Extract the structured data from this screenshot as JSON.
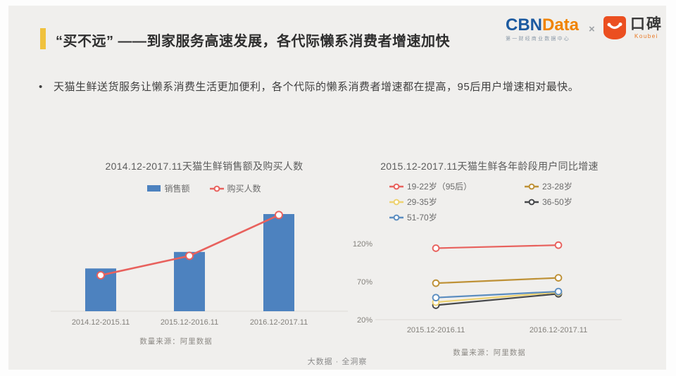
{
  "header": {
    "title": "“买不远” ——到家服务高速发展，各代际懒系消费者增速加快",
    "cbn_logo": {
      "cbn": "CBN",
      "data_word": "Data",
      "subtitle": "第一财经商业数据中心"
    },
    "separator": "×",
    "koubei_logo": {
      "cn": "口碑",
      "en": "Koubei",
      "brand_color": "#EB4F20"
    }
  },
  "bullet": {
    "marker": "•",
    "text": "天猫生鲜送货服务让懒系消费生活更加便利，各个代际的懒系消费者增速都在提高，95后用户增速相对最快。"
  },
  "chart_data": [
    {
      "type": "bar",
      "title": "2014.12-2017.11天猫生鲜销售额及购买人数",
      "categories": [
        "2014.12-2015.11",
        "2015.12-2016.11",
        "2016.12-2017.11"
      ],
      "series": [
        {
          "name": "销售额",
          "type": "bar",
          "color": "#4D82BF",
          "values": [
            44,
            61,
            100
          ]
        },
        {
          "name": "购买人数",
          "type": "line",
          "color": "#E8615D",
          "values": [
            37,
            57,
            99
          ]
        }
      ],
      "value_note": "无数值轴标注，取值为相对高度(最大=100)",
      "legend_position": "top",
      "grid": false,
      "source": "数量来源：阿里数据"
    },
    {
      "type": "line",
      "title": "2015.12-2017.11天猫生鲜各年龄段用户同比增速",
      "categories": [
        "2015.12-2016.11",
        "2016.12-2017.11"
      ],
      "series": [
        {
          "name": "19-22岁（95后）",
          "color": "#E8615D",
          "values": [
            114,
            118
          ]
        },
        {
          "name": "23-28岁",
          "color": "#BE9136",
          "values": [
            68,
            75
          ]
        },
        {
          "name": "29-35岁",
          "color": "#EDD271",
          "values": [
            43,
            56
          ]
        },
        {
          "name": "36-50岁",
          "color": "#46484B",
          "values": [
            39,
            54
          ]
        },
        {
          "name": "51-70岁",
          "color": "#5B8DC0",
          "values": [
            49,
            57
          ]
        }
      ],
      "ylabel": "",
      "xlabel": "",
      "yticks": [
        20,
        70,
        120
      ],
      "ytick_labels": [
        "20%",
        "70%",
        "120%"
      ],
      "ylim": [
        20,
        130
      ],
      "legend_position": "top",
      "grid": false,
      "source": "数量来源：阿里数据"
    }
  ],
  "footer": {
    "text": "大数据 · 全洞察"
  }
}
